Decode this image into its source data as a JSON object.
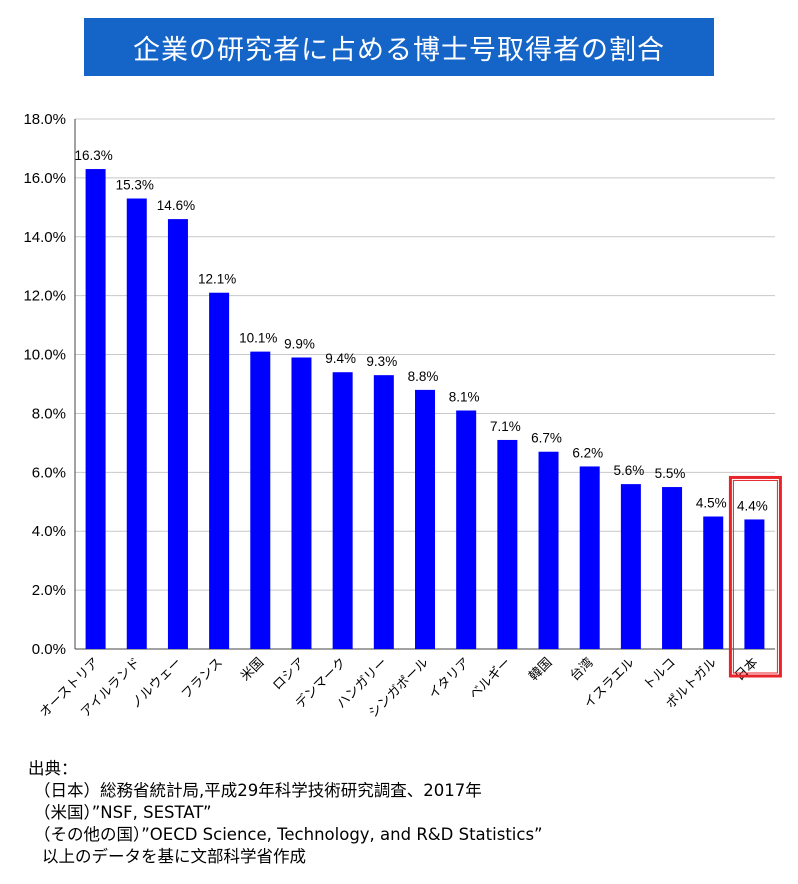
{
  "title": "企業の研究者に占める博士号取得者の割合",
  "chart_data": {
    "type": "bar",
    "categories": [
      "オーストリア",
      "アイルランド",
      "ノルウェー",
      "フランス",
      "米国",
      "ロシア",
      "デンマーク",
      "ハンガリー",
      "シンガポール",
      "イタリア",
      "ベルギー",
      "韓国",
      "台湾",
      "イスラエル",
      "トルコ",
      "ポルトガル",
      "日本"
    ],
    "values": [
      16.3,
      15.3,
      14.6,
      12.1,
      10.1,
      9.9,
      9.4,
      9.3,
      8.8,
      8.1,
      7.1,
      6.7,
      6.2,
      5.6,
      5.5,
      4.5,
      4.4
    ],
    "value_labels": [
      "16.3%",
      "15.3%",
      "14.6%",
      "12.1%",
      "10.1%",
      "9.9%",
      "9.4%",
      "9.3%",
      "8.8%",
      "8.1%",
      "7.1%",
      "6.7%",
      "6.2%",
      "5.6%",
      "5.5%",
      "4.5%",
      "4.4%"
    ],
    "ylim": [
      0,
      18
    ],
    "yticks": [
      0,
      2,
      4,
      6,
      8,
      10,
      12,
      14,
      16,
      18
    ],
    "ytick_labels": [
      "0.0%",
      "2.0%",
      "4.0%",
      "6.0%",
      "8.0%",
      "10.0%",
      "12.0%",
      "14.0%",
      "16.0%",
      "18.0%"
    ],
    "bar_color": "#0000ff",
    "highlight_category": "日本",
    "highlight_color": "#e8232a",
    "grid": true
  },
  "source": {
    "heading": "出典：",
    "lines": [
      "（日本）総務省統計局,平成29年科学技術研究調査、2017年",
      "（米国）”NSF, SESTAT”",
      "（その他の国）”OECD Science, Technology, and R&D Statistics”",
      "以上のデータを基に文部科学省作成"
    ]
  }
}
